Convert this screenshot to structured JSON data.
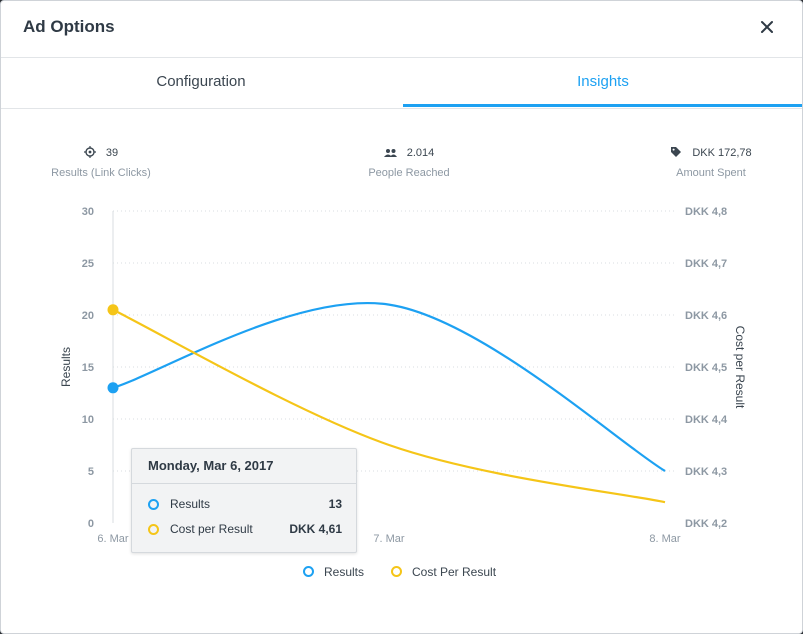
{
  "modal": {
    "title": "Ad Options",
    "close_label": "×"
  },
  "tabs": [
    {
      "label": "Configuration",
      "active": false
    },
    {
      "label": "Insights",
      "active": true
    }
  ],
  "stats": [
    {
      "icon": "target-icon",
      "value": "39",
      "label": "Results (Link Clicks)"
    },
    {
      "icon": "people-icon",
      "value": "2.014",
      "label": "People Reached"
    },
    {
      "icon": "tag-icon",
      "value": "DKK 172,78",
      "label": "Amount Spent"
    }
  ],
  "colors": {
    "results": "#1da1f2",
    "cost": "#f5c518",
    "accent": "#1da1f2"
  },
  "chart_data": {
    "type": "line",
    "categories": [
      "6. Mar",
      "7. Mar",
      "8. Mar"
    ],
    "ylabel": "Results",
    "y2label": "Cost per Result",
    "ylim": [
      0,
      30
    ],
    "y2lim": [
      4.2,
      4.8
    ],
    "y_ticks": [
      "0",
      "5",
      "10",
      "15",
      "20",
      "25",
      "30"
    ],
    "y2_ticks": [
      "DKK 4,2",
      "DKK 4,3",
      "DKK 4,4",
      "DKK 4,5",
      "DKK 4,6",
      "DKK 4,7",
      "DKK 4,8"
    ],
    "series": [
      {
        "name": "Results",
        "axis": "left",
        "values": [
          13,
          21,
          5
        ]
      },
      {
        "name": "Cost Per Result",
        "axis": "right",
        "values": [
          4.61,
          4.35,
          4.24
        ]
      }
    ],
    "grid": true,
    "legend": "bottom"
  },
  "tooltip": {
    "title": "Monday, Mar 6, 2017",
    "rows": [
      {
        "name": "Results",
        "value": "13"
      },
      {
        "name": "Cost per Result",
        "value": "DKK 4,61"
      }
    ]
  },
  "legend": {
    "items": [
      "Results",
      "Cost Per Result"
    ]
  }
}
